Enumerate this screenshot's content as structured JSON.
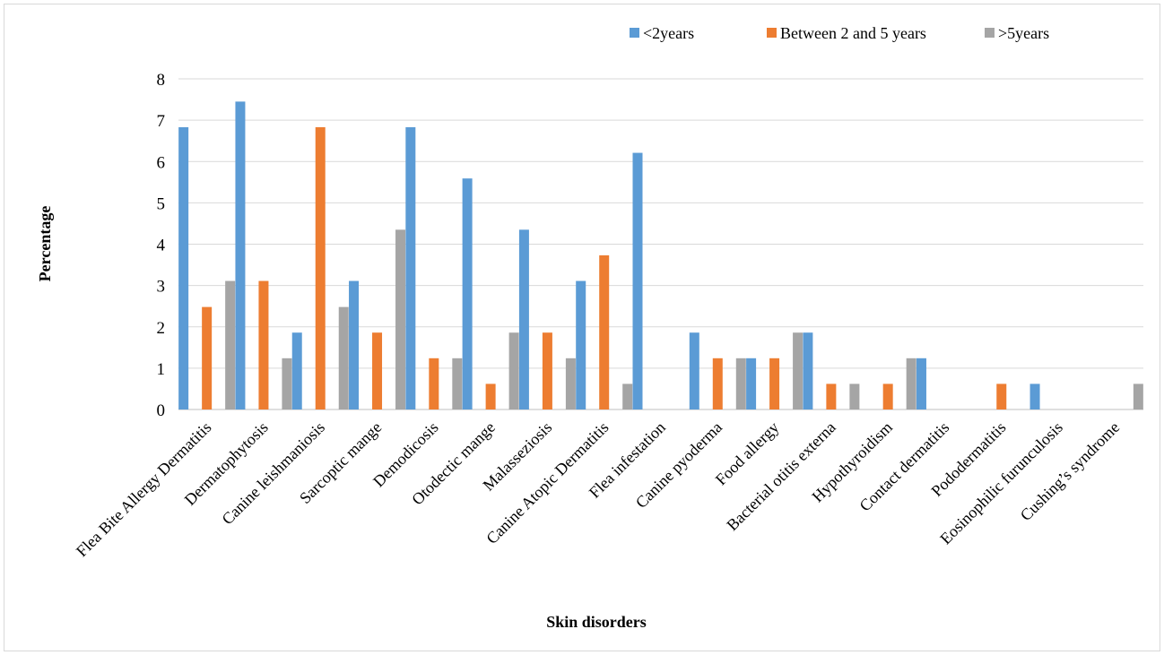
{
  "chart_data": {
    "type": "bar",
    "xlabel": "Skin disorders",
    "ylabel": "Percentage",
    "ylim": [
      0,
      8
    ],
    "yticks": [
      "0",
      "1",
      "2",
      "3",
      "4",
      "5",
      "6",
      "7",
      "8"
    ],
    "grid": true,
    "legend_position": "top-right",
    "categories": [
      "Flea Bite Allergy Dermatitis",
      "Dermatophytosis",
      "Canine leishmaniosis",
      "Sarcoptic mange",
      "Demodicosis",
      "Otodectic mange",
      "Malasseziosis",
      "Canine Atopic Dermatitis",
      "Flea infestation",
      "Canine pyoderma",
      "Food allergy",
      "Bacterial otitis externa",
      "Hypothyroidism",
      "Contact dermatitis",
      "Pododermatitis",
      "Eosinophilic furunculosis",
      "Cushing’s syndrome"
    ],
    "series": [
      {
        "name": "<2years",
        "color": "#5b9bd5",
        "values": [
          6.83,
          7.45,
          1.86,
          3.11,
          6.83,
          5.59,
          4.35,
          3.11,
          6.21,
          1.86,
          1.24,
          1.86,
          0,
          1.24,
          0,
          0.62,
          0
        ]
      },
      {
        "name": "Between 2 and 5 years",
        "color": "#ed7d31",
        "values": [
          2.48,
          3.11,
          6.83,
          1.86,
          1.24,
          0.62,
          1.86,
          3.73,
          0,
          1.24,
          1.24,
          0.62,
          0.62,
          0,
          0.62,
          0,
          0
        ]
      },
      {
        "name": ">5years",
        "color": "#a5a5a5",
        "values": [
          3.11,
          1.24,
          2.48,
          4.35,
          1.24,
          1.86,
          1.24,
          0.62,
          0,
          1.24,
          1.86,
          0.62,
          1.24,
          0,
          0,
          0,
          0.62
        ]
      }
    ]
  }
}
